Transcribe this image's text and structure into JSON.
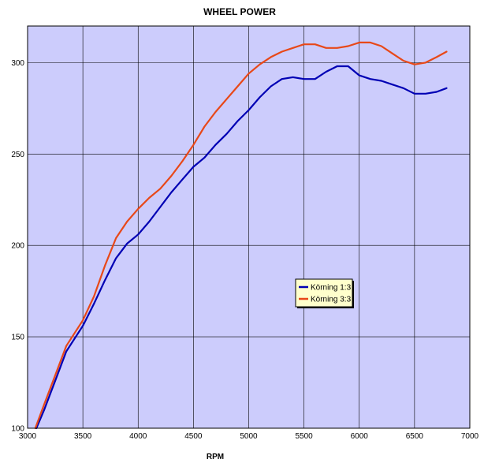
{
  "chart_data": {
    "type": "line",
    "title": "WHEEL POWER",
    "xlabel": "RPM",
    "ylabel": "",
    "xlim": [
      3000,
      7000
    ],
    "ylim": [
      100,
      320
    ],
    "x_ticks": [
      3000,
      3500,
      4000,
      4500,
      5000,
      5500,
      6000,
      6500,
      7000
    ],
    "y_ticks": [
      100,
      150,
      200,
      250,
      300
    ],
    "grid": true,
    "legend_position": "center-right",
    "colors": {
      "plot_background": "#ccccfc",
      "grid": "#000000"
    },
    "series": [
      {
        "name": "Körning 1:3",
        "color": "#0000b4",
        "points": [
          [
            3080,
            100
          ],
          [
            3150,
            110
          ],
          [
            3250,
            126
          ],
          [
            3350,
            142
          ],
          [
            3500,
            156
          ],
          [
            3600,
            168
          ],
          [
            3700,
            181
          ],
          [
            3800,
            193
          ],
          [
            3900,
            201
          ],
          [
            4000,
            206
          ],
          [
            4100,
            213
          ],
          [
            4200,
            221
          ],
          [
            4300,
            229
          ],
          [
            4400,
            236
          ],
          [
            4500,
            243
          ],
          [
            4600,
            248
          ],
          [
            4700,
            255
          ],
          [
            4800,
            261
          ],
          [
            4900,
            268
          ],
          [
            5000,
            274
          ],
          [
            5100,
            281
          ],
          [
            5200,
            287
          ],
          [
            5300,
            291
          ],
          [
            5400,
            292
          ],
          [
            5500,
            291
          ],
          [
            5600,
            291
          ],
          [
            5700,
            295
          ],
          [
            5800,
            298
          ],
          [
            5900,
            298
          ],
          [
            6000,
            293
          ],
          [
            6100,
            291
          ],
          [
            6200,
            290
          ],
          [
            6300,
            288
          ],
          [
            6400,
            286
          ],
          [
            6500,
            283
          ],
          [
            6600,
            283
          ],
          [
            6700,
            284
          ],
          [
            6790,
            286
          ]
        ]
      },
      {
        "name": "Körning 3:3",
        "color": "#e84818",
        "points": [
          [
            3070,
            100
          ],
          [
            3150,
            113
          ],
          [
            3250,
            129
          ],
          [
            3350,
            145
          ],
          [
            3500,
            159
          ],
          [
            3600,
            172
          ],
          [
            3700,
            189
          ],
          [
            3800,
            204
          ],
          [
            3900,
            213
          ],
          [
            4000,
            220
          ],
          [
            4100,
            226
          ],
          [
            4200,
            231
          ],
          [
            4300,
            238
          ],
          [
            4400,
            246
          ],
          [
            4500,
            255
          ],
          [
            4600,
            265
          ],
          [
            4700,
            273
          ],
          [
            4800,
            280
          ],
          [
            4900,
            287
          ],
          [
            5000,
            294
          ],
          [
            5100,
            299
          ],
          [
            5200,
            303
          ],
          [
            5300,
            306
          ],
          [
            5400,
            308
          ],
          [
            5500,
            310
          ],
          [
            5600,
            310
          ],
          [
            5700,
            308
          ],
          [
            5800,
            308
          ],
          [
            5900,
            309
          ],
          [
            6000,
            311
          ],
          [
            6100,
            311
          ],
          [
            6200,
            309
          ],
          [
            6300,
            305
          ],
          [
            6400,
            301
          ],
          [
            6500,
            299
          ],
          [
            6600,
            300
          ],
          [
            6700,
            303
          ],
          [
            6790,
            306
          ]
        ]
      }
    ]
  }
}
